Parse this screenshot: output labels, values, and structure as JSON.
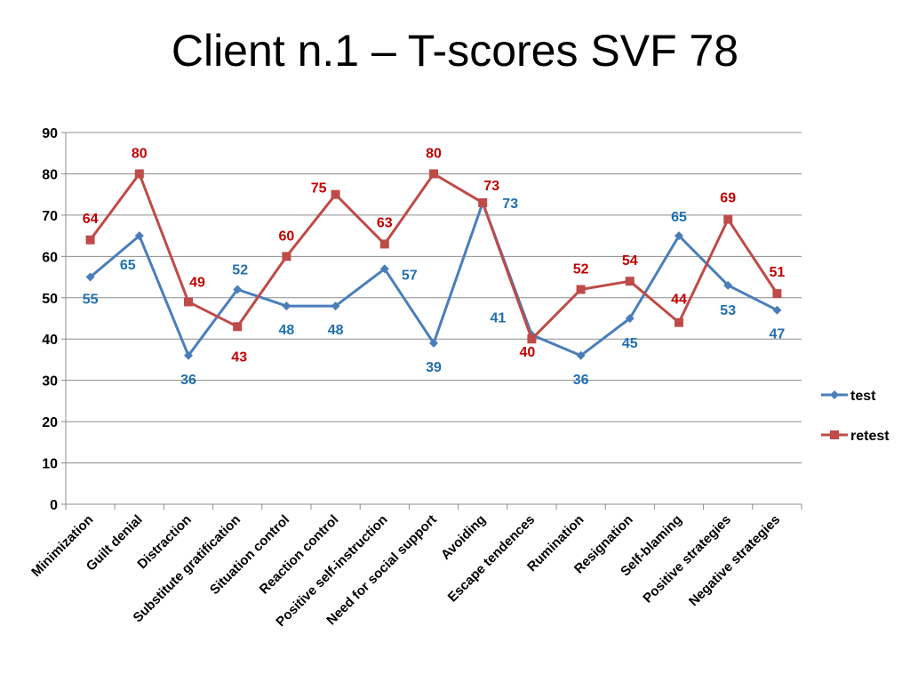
{
  "chart_data": {
    "type": "line",
    "title": "Client n.1 – T-scores SVF 78",
    "categories": [
      "Minimization",
      "Guilt denial",
      "Distraction",
      "Substitute gratification",
      "Situation control",
      "Reaction control",
      "Positive self-instruction",
      "Need for social support",
      "Avoiding",
      "Escape tendences",
      "Rumination",
      "Resignation",
      "Self-blaming",
      "Positive strategies",
      "Negative strategies"
    ],
    "series": [
      {
        "name": "test",
        "values": [
          55,
          65,
          36,
          52,
          48,
          48,
          57,
          39,
          73,
          41,
          36,
          45,
          65,
          53,
          47
        ],
        "color": "#4A7EBB",
        "label_color": "#1F6FB2",
        "marker": "diamond"
      },
      {
        "name": "retest",
        "values": [
          64,
          80,
          49,
          43,
          60,
          75,
          63,
          80,
          73,
          40,
          52,
          54,
          44,
          69,
          51
        ],
        "color": "#BE4B48",
        "label_color": "#C00000",
        "marker": "square"
      }
    ],
    "ylim": [
      0,
      90
    ],
    "yticks": [
      0,
      10,
      20,
      30,
      40,
      50,
      60,
      70,
      80,
      90
    ],
    "grid": true,
    "legend": "right"
  }
}
